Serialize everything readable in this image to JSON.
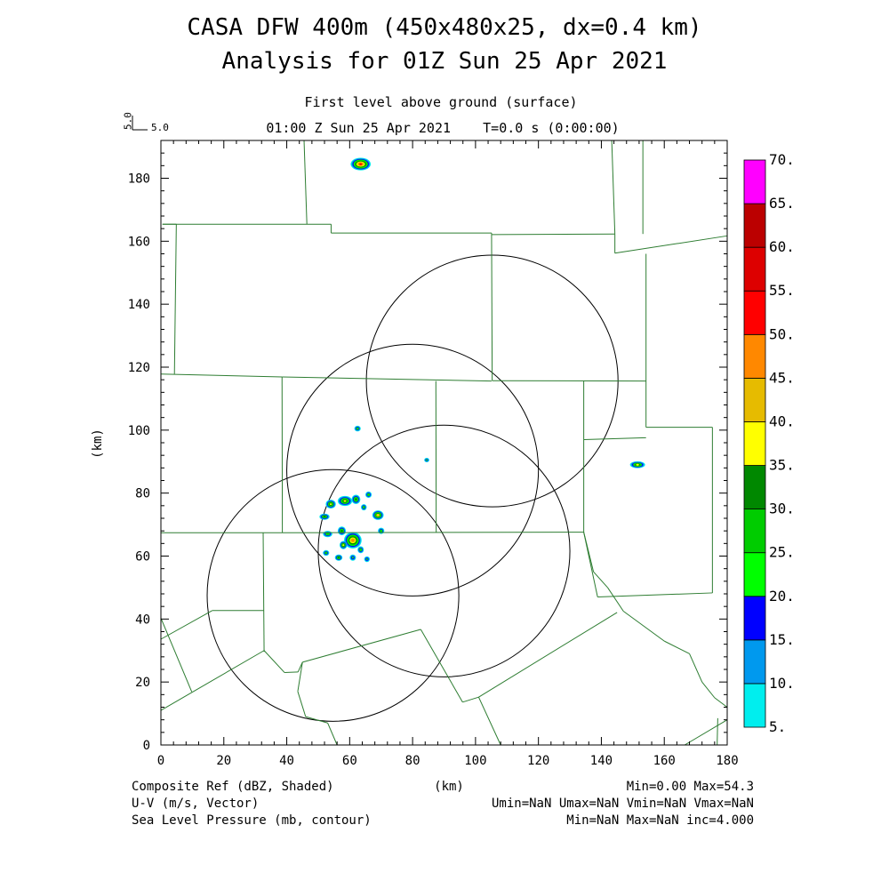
{
  "title_line1": "CASA DFW 400m (450x480x25, dx=0.4 km)",
  "title_line2": "Analysis for 01Z Sun 25 Apr 2021",
  "subtitle_level": "First level above ground (surface)",
  "subtitle_time": "01:00 Z Sun 25 Apr 2021    T=0.0 s (0:00:00)",
  "vector_ref": {
    "rotated": "5.0",
    "label": "5.0"
  },
  "footer": {
    "left": [
      "Composite Ref (dBZ, Shaded)",
      "U-V (m/s, Vector)",
      "Sea Level Pressure (mb, contour)"
    ],
    "center": "(km)",
    "right": [
      "Min=0.00 Max=54.3",
      "Umin=NaN Umax=NaN Vmin=NaN Vmax=NaN",
      "Min=NaN Max=NaN inc=4.000"
    ]
  },
  "chart_data": {
    "type": "heatmap",
    "xlabel": "(km)",
    "ylabel": "(km)",
    "xlim": [
      0,
      180
    ],
    "ylim": [
      0,
      192
    ],
    "xticks": [
      0,
      20,
      40,
      60,
      80,
      100,
      120,
      140,
      160,
      180
    ],
    "yticks": [
      0,
      20,
      40,
      60,
      80,
      100,
      120,
      140,
      160,
      180
    ],
    "colorbar": {
      "levels": [
        "5.",
        "10.",
        "15.",
        "20.",
        "25.",
        "30.",
        "35.",
        "40.",
        "45.",
        "50.",
        "55.",
        "60.",
        "65.",
        "70."
      ],
      "colors": [
        "#00eeee",
        "#0099ee",
        "#0000ff",
        "#00ff00",
        "#00cc00",
        "#008800",
        "#ffff00",
        "#e6bb00",
        "#ff8800",
        "#ff0000",
        "#dd0000",
        "#bb0000",
        "#ff00ff"
      ]
    },
    "radar_rings": [
      {
        "x": 54.7,
        "y": 47.5,
        "r": 40
      },
      {
        "x": 80.0,
        "y": 87.3,
        "r": 40
      },
      {
        "x": 105.3,
        "y": 115.6,
        "r": 40
      },
      {
        "x": 90.0,
        "y": 61.6,
        "r": 40
      }
    ],
    "echoes": [
      {
        "x": 63.5,
        "y": 184.5,
        "rx": 3.2,
        "ry": 2.0,
        "dbz": 54
      },
      {
        "x": 54.0,
        "y": 76.5,
        "rx": 1.6,
        "ry": 1.4,
        "dbz": 38
      },
      {
        "x": 58.5,
        "y": 77.5,
        "rx": 2.3,
        "ry": 1.6,
        "dbz": 38
      },
      {
        "x": 62.0,
        "y": 78.0,
        "rx": 1.4,
        "ry": 1.5,
        "dbz": 34
      },
      {
        "x": 66.0,
        "y": 79.5,
        "rx": 1.0,
        "ry": 1.0,
        "dbz": 28
      },
      {
        "x": 64.5,
        "y": 75.5,
        "rx": 0.9,
        "ry": 1.0,
        "dbz": 25
      },
      {
        "x": 52.0,
        "y": 72.5,
        "rx": 1.6,
        "ry": 1.0,
        "dbz": 30
      },
      {
        "x": 69.0,
        "y": 73.0,
        "rx": 1.8,
        "ry": 1.5,
        "dbz": 40
      },
      {
        "x": 70.0,
        "y": 68.0,
        "rx": 1.0,
        "ry": 1.0,
        "dbz": 28
      },
      {
        "x": 53.0,
        "y": 67.0,
        "rx": 1.5,
        "ry": 1.0,
        "dbz": 28
      },
      {
        "x": 57.5,
        "y": 68.0,
        "rx": 1.3,
        "ry": 1.4,
        "dbz": 30
      },
      {
        "x": 61.0,
        "y": 65.0,
        "rx": 2.8,
        "ry": 2.6,
        "dbz": 46
      },
      {
        "x": 58.0,
        "y": 63.5,
        "rx": 1.2,
        "ry": 1.3,
        "dbz": 36
      },
      {
        "x": 63.5,
        "y": 62.0,
        "rx": 1.0,
        "ry": 1.1,
        "dbz": 26
      },
      {
        "x": 52.5,
        "y": 61.0,
        "rx": 1.0,
        "ry": 0.9,
        "dbz": 26
      },
      {
        "x": 56.5,
        "y": 59.5,
        "rx": 1.2,
        "ry": 1.0,
        "dbz": 30
      },
      {
        "x": 61.0,
        "y": 59.5,
        "rx": 1.0,
        "ry": 1.0,
        "dbz": 24
      },
      {
        "x": 65.5,
        "y": 59.0,
        "rx": 0.9,
        "ry": 0.9,
        "dbz": 24
      },
      {
        "x": 62.5,
        "y": 100.5,
        "rx": 1.0,
        "ry": 0.9,
        "dbz": 26
      },
      {
        "x": 84.5,
        "y": 90.5,
        "rx": 0.8,
        "ry": 0.7,
        "dbz": 22
      },
      {
        "x": 151.5,
        "y": 89.0,
        "rx": 2.4,
        "ry": 1.1,
        "dbz": 36
      }
    ],
    "county_lines": [
      [
        [
          45.5,
          192
        ],
        [
          46.4,
          165.4
        ]
      ],
      [
        [
          0.5,
          165.4
        ],
        [
          54.1,
          165.4
        ]
      ],
      [
        [
          54.1,
          165.4
        ],
        [
          54.1,
          162.6
        ]
      ],
      [
        [
          54.1,
          162.6
        ],
        [
          105.1,
          162.6
        ]
      ],
      [
        [
          105.1,
          162.6
        ],
        [
          105.1,
          162.1
        ]
      ],
      [
        [
          105.1,
          162.1
        ],
        [
          144.3,
          162.3
        ]
      ],
      [
        [
          144.3,
          162.3
        ],
        [
          144.3,
          156.2
        ]
      ],
      [
        [
          144.3,
          156.2
        ],
        [
          180,
          161.7
        ]
      ],
      [
        [
          153.2,
          192
        ],
        [
          153.2,
          162.3
        ]
      ],
      [
        [
          144.3,
          162.3
        ],
        [
          143.3,
          192
        ]
      ],
      [
        [
          4.9,
          165.4
        ],
        [
          4.3,
          117.8
        ]
      ],
      [
        [
          4.9,
          165.4
        ],
        [
          0.5,
          165.4
        ]
      ],
      [
        [
          0,
          117.8
        ],
        [
          38.5,
          116.9
        ]
      ],
      [
        [
          38.5,
          116.9
        ],
        [
          105.1,
          115.6
        ]
      ],
      [
        [
          105.1,
          162.1
        ],
        [
          105.3,
          115.7
        ]
      ],
      [
        [
          105.3,
          115.7
        ],
        [
          154.2,
          115.6
        ]
      ],
      [
        [
          154.2,
          115.6
        ],
        [
          154.2,
          156.0
        ]
      ],
      [
        [
          38.5,
          116.9
        ],
        [
          38.6,
          67.4
        ]
      ],
      [
        [
          0,
          67.4
        ],
        [
          38.6,
          67.4
        ]
      ],
      [
        [
          38.6,
          67.4
        ],
        [
          134.4,
          67.6
        ]
      ],
      [
        [
          87.4,
          115.6
        ],
        [
          87.5,
          67.5
        ]
      ],
      [
        [
          134.4,
          115.6
        ],
        [
          134.4,
          67.6
        ]
      ],
      [
        [
          134.4,
          97.0
        ],
        [
          154.2,
          97.6
        ]
      ],
      [
        [
          154.2,
          115.6
        ],
        [
          154.2,
          100.9
        ]
      ],
      [
        [
          154.2,
          100.9
        ],
        [
          175.3,
          100.9
        ]
      ],
      [
        [
          175.3,
          100.9
        ],
        [
          175.3,
          48.3
        ]
      ],
      [
        [
          175.3,
          48.3
        ],
        [
          138.8,
          47.0
        ]
      ],
      [
        [
          134.4,
          67.6
        ],
        [
          138.8,
          47.0
        ]
      ],
      [
        [
          32.5,
          67.4
        ],
        [
          32.8,
          29.6
        ]
      ],
      [
        [
          0,
          33.6
        ],
        [
          16.3,
          42.7
        ]
      ],
      [
        [
          16.3,
          42.7
        ],
        [
          32.7,
          42.7
        ]
      ],
      [
        [
          0,
          40.3
        ],
        [
          9.8,
          16.9
        ]
      ],
      [
        [
          0,
          11.0
        ],
        [
          32.8,
          30.0
        ]
      ],
      [
        [
          32.8,
          30.0
        ],
        [
          39.3,
          23.0
        ]
      ],
      [
        [
          39.3,
          23.0
        ],
        [
          43.6,
          23.2
        ]
      ],
      [
        [
          43.6,
          23.2
        ],
        [
          45.0,
          26.3
        ]
      ],
      [
        [
          45.0,
          26.3
        ],
        [
          82.6,
          36.7
        ]
      ],
      [
        [
          82.6,
          36.7
        ],
        [
          95.9,
          13.6
        ]
      ],
      [
        [
          95.9,
          13.6
        ],
        [
          101.0,
          15.2
        ]
      ],
      [
        [
          101.0,
          15.2
        ],
        [
          145.0,
          42.1
        ]
      ],
      [
        [
          108.0,
          0
        ],
        [
          101.0,
          15.2
        ]
      ],
      [
        [
          45.0,
          26.3
        ],
        [
          43.5,
          17.0
        ]
      ],
      [
        [
          43.5,
          17.0
        ],
        [
          46.0,
          9.0
        ]
      ],
      [
        [
          46.0,
          9.0
        ],
        [
          53.0,
          7.0
        ]
      ],
      [
        [
          53.0,
          7.0
        ],
        [
          56.0,
          0
        ]
      ],
      [
        [
          134.4,
          67.6
        ],
        [
          137.5,
          55.0
        ]
      ],
      [
        [
          137.5,
          55.0
        ],
        [
          142.0,
          50.0
        ]
      ],
      [
        [
          142.0,
          50.0
        ],
        [
          147.0,
          42.5
        ]
      ],
      [
        [
          147.0,
          42.5
        ],
        [
          160.0,
          33.0
        ]
      ],
      [
        [
          160.0,
          33.0
        ],
        [
          168.0,
          29.0
        ]
      ],
      [
        [
          168.0,
          29.0
        ],
        [
          172.0,
          20.0
        ]
      ],
      [
        [
          172.0,
          20.0
        ],
        [
          176.0,
          15.0
        ]
      ],
      [
        [
          176.0,
          15.0
        ],
        [
          180.0,
          12.0
        ]
      ],
      [
        [
          166.5,
          0
        ],
        [
          180.0,
          8.0
        ]
      ],
      [
        [
          177.0,
          8.5
        ],
        [
          176.8,
          0
        ]
      ]
    ]
  }
}
